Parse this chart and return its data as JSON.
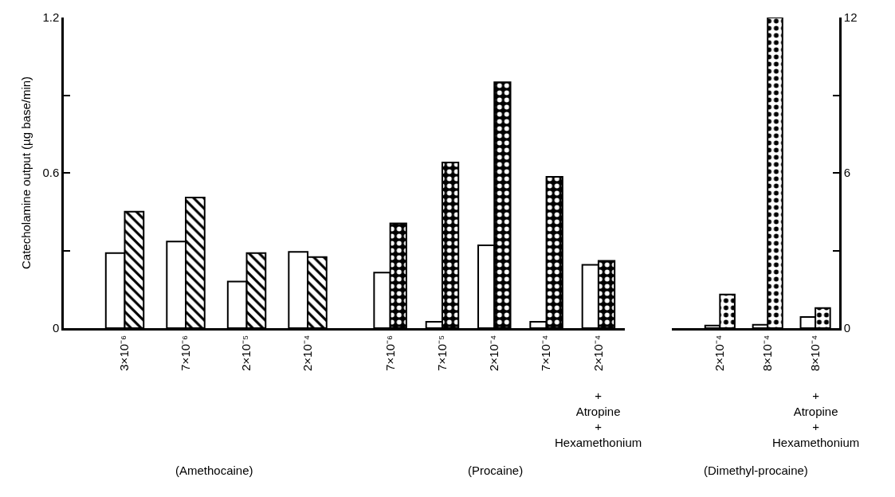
{
  "chart_data": [
    {
      "type": "bar",
      "xlabel": "(Amethocaine)",
      "ylabel": "Catecholamine output (µg base/min)",
      "categories": [
        "3×10⁻⁶",
        "7×10⁻⁶",
        "2×10⁻⁵",
        "2×10⁻⁴"
      ],
      "series": [
        {
          "color": "#ffffff",
          "values": [
            0.29,
            0.335,
            0.18,
            0.295
          ]
        },
        {
          "color": "#000000",
          "values": [
            0.45,
            0.505,
            0.29,
            0.275
          ]
        }
      ],
      "ylim": [
        0,
        1.2
      ],
      "yticks": [
        0,
        {
          "value": 0.3,
          "label": null
        },
        0.6,
        {
          "value": 0.9,
          "label": null
        },
        1.2
      ]
    },
    {
      "type": "bar",
      "xlabel": "(Procaine)",
      "categories": [
        "7×10⁻⁶",
        "7×10⁻⁵",
        "2×10⁻⁴",
        "7×10⁻⁴",
        "2×10⁻⁴"
      ],
      "series": [
        {
          "color": "#ffffff",
          "values": [
            0.215,
            0.025,
            0.32,
            0.025,
            0.245
          ]
        },
        {
          "color": "#000000",
          "values": [
            0.405,
            0.64,
            0.95,
            0.585,
            0.26
          ]
        }
      ],
      "ylim": [
        0,
        1.2
      ],
      "tick_labels": "x",
      "annotations": [
        "+\nAtropine\n+\nHexamethonium"
      ]
    },
    {
      "type": "bar",
      "xlabel": "(Dimethyl-procaine)",
      "categories": [
        "2×10⁻⁴",
        "8×10⁻⁴",
        "8×10⁻⁴"
      ],
      "series": [
        {
          "color": "#ffffff",
          "axis": "y2",
          "values": [
            0.1,
            0.13,
            0.43
          ]
        },
        {
          "color": "#000000",
          "axis": "y2",
          "values": [
            1.3,
            12,
            0.78
          ]
        }
      ],
      "y2lim": [
        0,
        12
      ],
      "y2ticks": [
        0,
        {
          "value": 3,
          "label": null
        },
        6,
        {
          "value": 9,
          "label": null
        },
        12
      ],
      "annotations": [
        "+\nAtropine\n+\nHexamethonium"
      ]
    }
  ]
}
